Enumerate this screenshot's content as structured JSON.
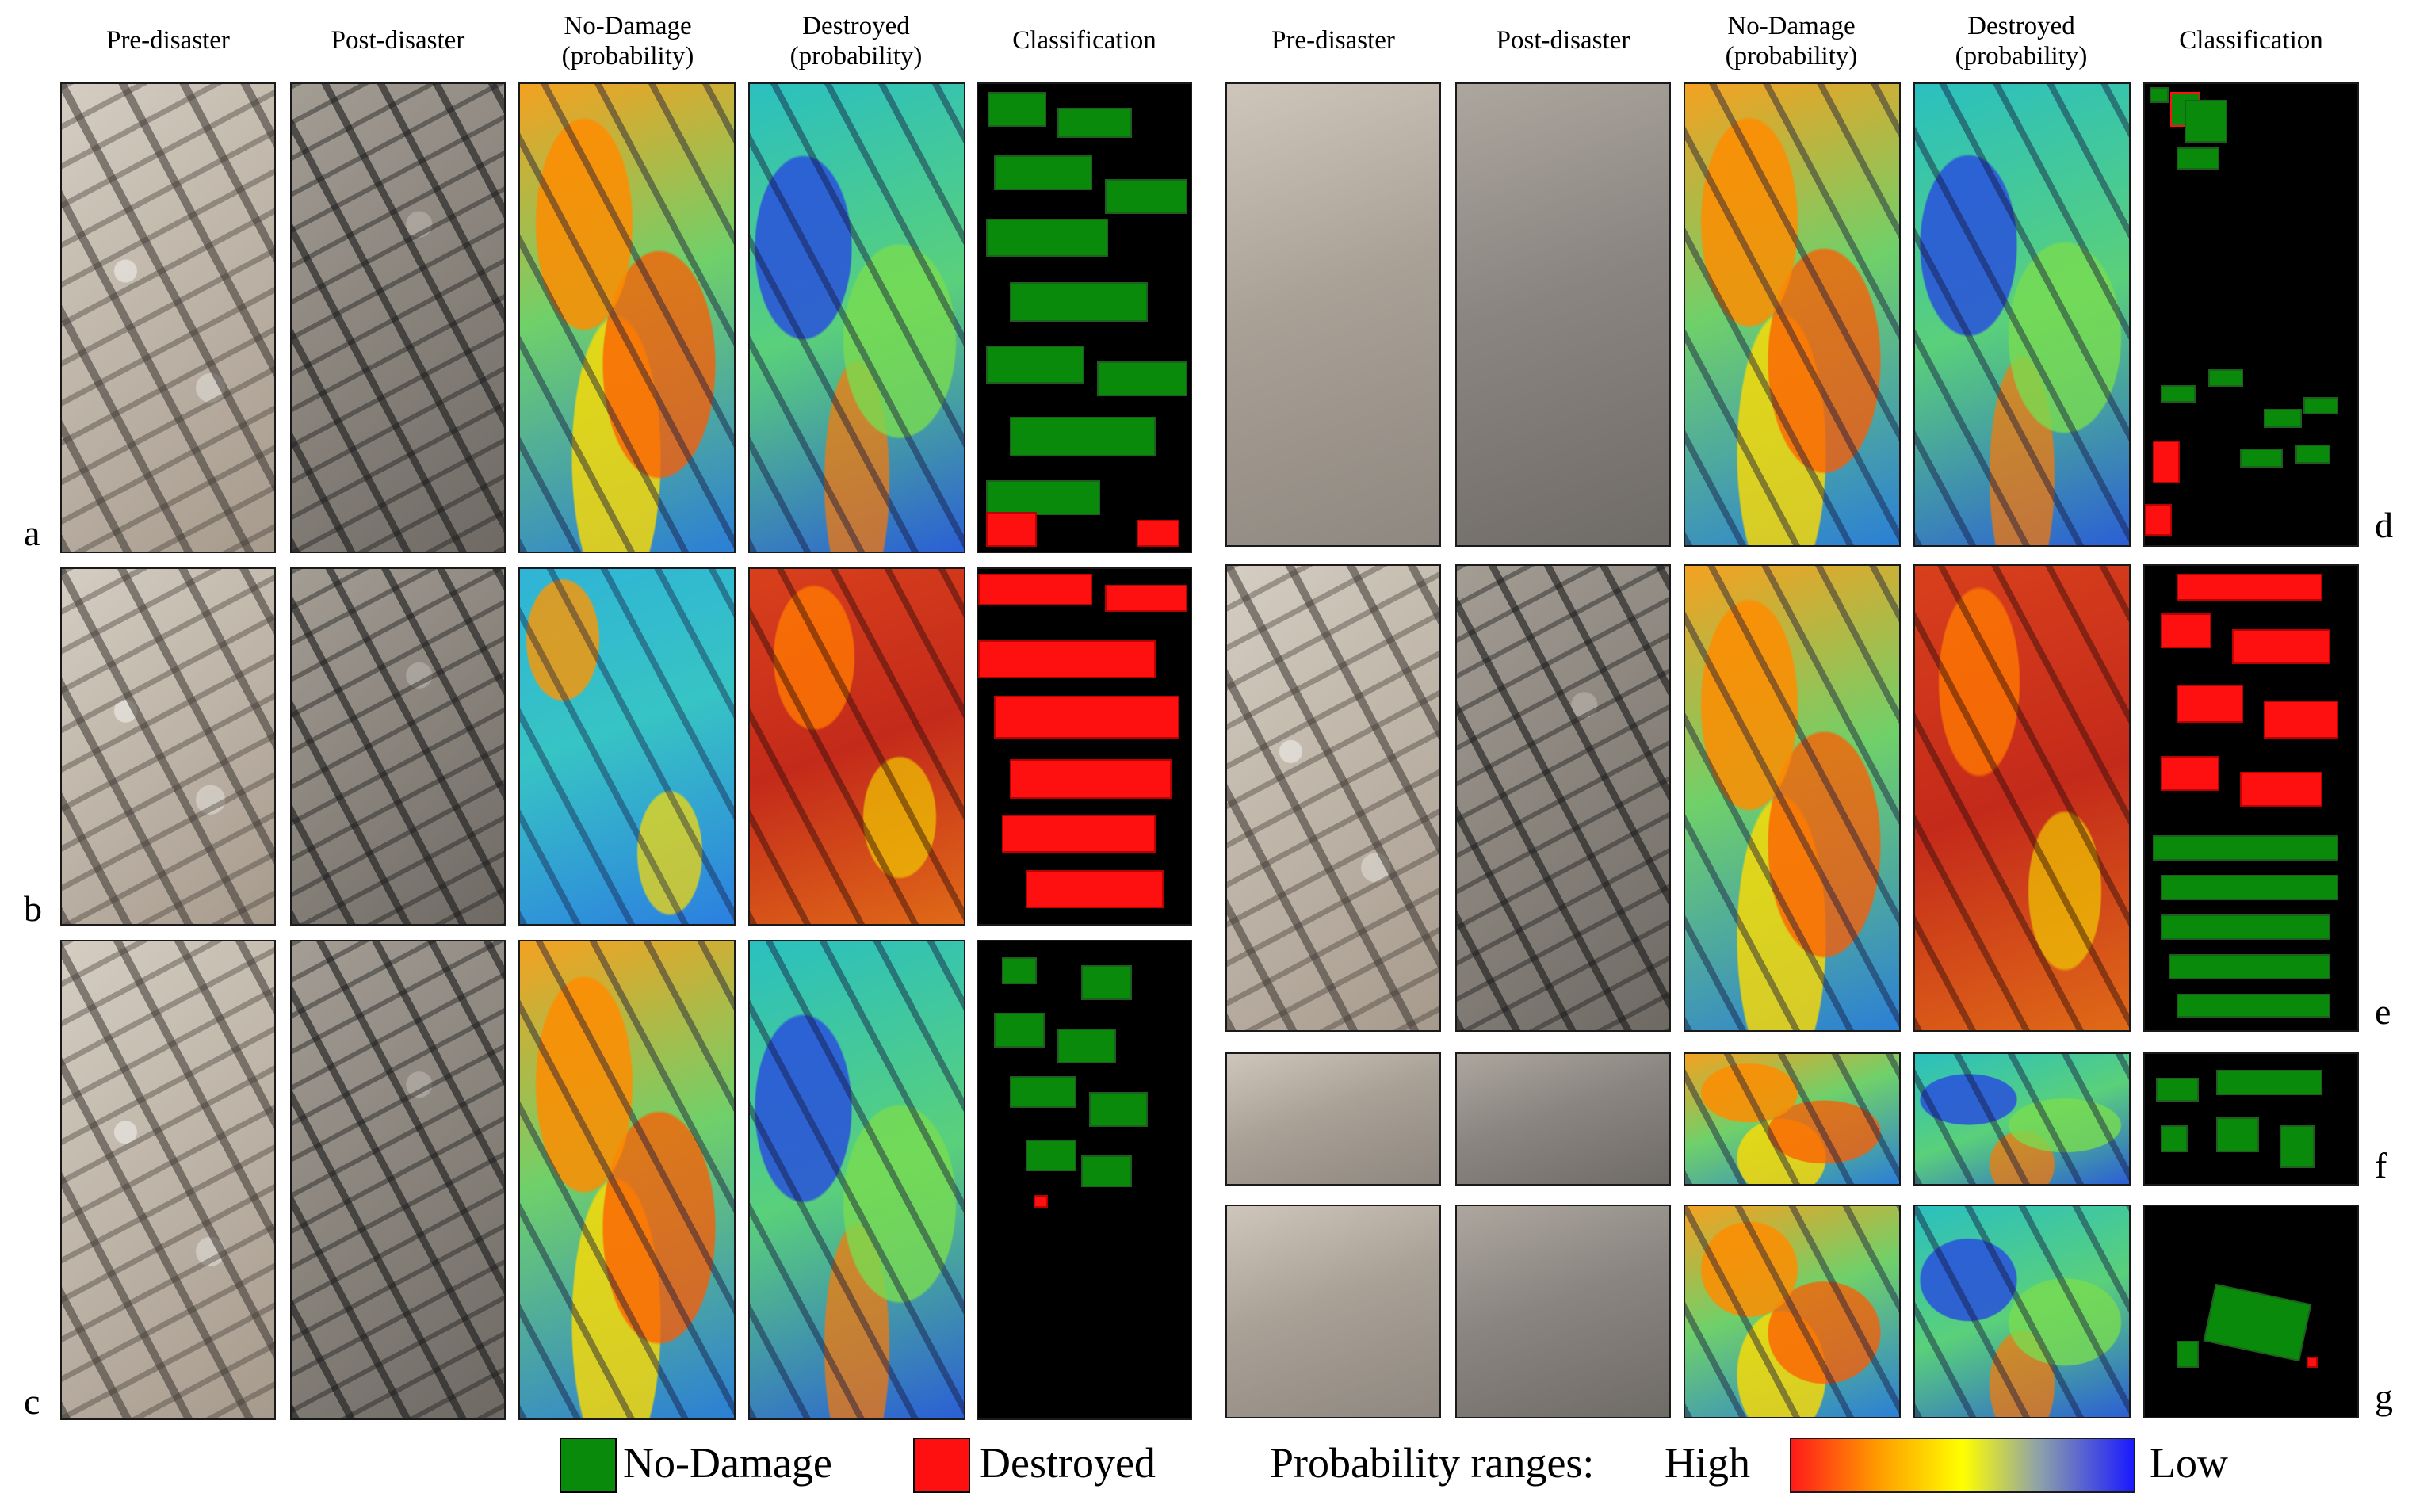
{
  "column_headers_left": [
    "Pre-disaster",
    "Post-disaster",
    "No-Damage\n(probability)",
    "Destroyed\n(probability)",
    "Classification"
  ],
  "column_headers_right": [
    "Pre-disaster",
    "Post-disaster",
    "No-Damage\n(probability)",
    "Destroyed\n(probability)",
    "Classification"
  ],
  "row_labels": {
    "a": "a",
    "b": "b",
    "c": "c",
    "d": "d",
    "e": "e",
    "f": "f",
    "g": "g"
  },
  "legend": {
    "no_damage_label": "No-Damage",
    "destroyed_label": "Destroyed",
    "probability_ranges_label": "Probability ranges:",
    "high_label": "High",
    "low_label": "Low"
  },
  "colors": {
    "no_damage": "#0a8a0a",
    "destroyed": "#ff1010",
    "gradient": [
      "#ff1a1a",
      "#ff9a00",
      "#ffff00",
      "#8fa3a8",
      "#1a1aff"
    ]
  }
}
